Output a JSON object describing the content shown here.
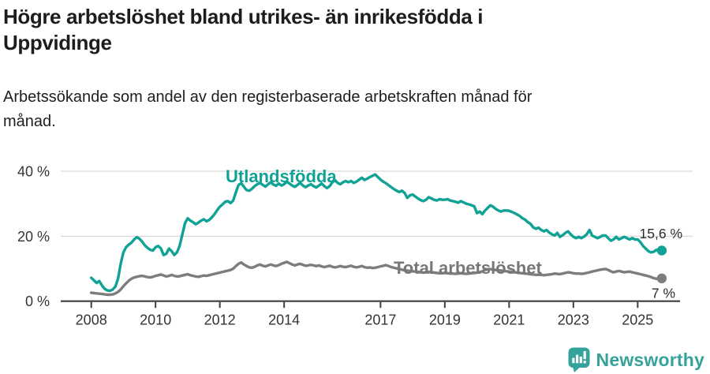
{
  "header": {
    "title_line1": "Högre arbetslöshet bland utrikes- än inrikesfödda i",
    "title_line2": "Uppvidinge",
    "subtitle_line1": "Arbetssökande som andel av den registerbaserade arbetskraften månad för",
    "subtitle_line2": "månad."
  },
  "chart_data": {
    "type": "line",
    "x_unit": "month",
    "x_start": "2008-01",
    "x_end": "2025-10",
    "x_tick_years": [
      2008,
      2010,
      2012,
      2014,
      2017,
      2019,
      2021,
      2023,
      2025
    ],
    "y_ticks": [
      {
        "value": 0,
        "label": "0 %"
      },
      {
        "value": 20,
        "label": "20 %"
      },
      {
        "value": 40,
        "label": "40 %"
      }
    ],
    "ylim": [
      0,
      43
    ],
    "grid": true,
    "series": [
      {
        "name": "Utlandsfödda",
        "color": "#0fa295",
        "end_label": "15,6 %",
        "end_value": 15.6,
        "values": [
          7.2,
          6.4,
          5.6,
          6.2,
          4.8,
          3.8,
          3.3,
          3.2,
          3.6,
          4.5,
          7.0,
          11.5,
          15.0,
          16.6,
          17.4,
          18.0,
          19.0,
          19.7,
          19.2,
          18.3,
          17.2,
          16.4,
          15.8,
          15.6,
          16.6,
          17.0,
          16.2,
          14.2,
          14.6,
          16.2,
          15.4,
          14.2,
          15.0,
          17.0,
          20.5,
          24.0,
          25.5,
          24.8,
          24.3,
          23.7,
          24.2,
          24.8,
          25.2,
          24.6,
          25.0,
          25.8,
          26.8,
          28.0,
          29.1,
          29.8,
          30.6,
          30.8,
          30.2,
          31.0,
          33.5,
          35.8,
          36.3,
          35.2,
          34.2,
          34.0,
          34.6,
          35.4,
          36.0,
          36.4,
          35.8,
          35.3,
          36.0,
          36.6,
          35.9,
          35.5,
          36.2,
          35.6,
          36.0,
          36.8,
          36.2,
          35.6,
          35.2,
          35.8,
          36.4,
          35.6,
          35.1,
          35.6,
          36.0,
          35.4,
          35.0,
          35.6,
          36.2,
          35.4,
          34.8,
          35.4,
          36.6,
          37.2,
          36.4,
          36.0,
          36.6,
          37.0,
          36.6,
          37.0,
          36.4,
          36.8,
          37.4,
          38.0,
          37.3,
          37.7,
          38.2,
          38.6,
          39.0,
          38.2,
          37.4,
          36.8,
          36.3,
          35.7,
          35.1,
          34.5,
          34.0,
          33.6,
          34.0,
          33.3,
          31.8,
          32.6,
          32.8,
          32.2,
          31.6,
          31.1,
          30.8,
          31.2,
          32.0,
          31.6,
          31.2,
          31.0,
          31.4,
          31.2,
          31.2,
          31.4,
          31.0,
          30.8,
          30.6,
          30.3,
          30.8,
          30.4,
          30.0,
          29.8,
          29.5,
          29.2,
          27.1,
          27.6,
          26.8,
          27.9,
          28.7,
          29.5,
          29.1,
          28.4,
          27.9,
          27.6,
          27.9,
          27.9,
          27.8,
          27.5,
          27.1,
          26.7,
          26.2,
          25.5,
          25.1,
          24.3,
          23.8,
          22.7,
          22.3,
          22.6,
          21.9,
          21.5,
          21.9,
          21.1,
          20.6,
          20.2,
          21.0,
          19.8,
          20.3,
          21.0,
          21.5,
          20.6,
          19.8,
          19.4,
          19.8,
          19.4,
          19.9,
          20.6,
          21.9,
          20.2,
          19.8,
          19.4,
          19.8,
          20.2,
          20.2,
          19.4,
          18.6,
          19.0,
          19.8,
          19.0,
          19.4,
          19.8,
          19.4,
          19.0,
          19.4,
          19.0,
          19.0,
          18.2,
          17.0,
          16.2,
          15.4,
          15.0,
          15.2,
          15.8,
          15.3,
          15.6
        ]
      },
      {
        "name": "Total arbetslöshet",
        "color": "#7d7d7d",
        "end_label": "7 %",
        "end_value": 7.0,
        "values": [
          2.6,
          2.5,
          2.4,
          2.3,
          2.2,
          2.1,
          2.0,
          2.0,
          2.1,
          2.4,
          2.9,
          3.6,
          4.6,
          5.5,
          6.3,
          6.9,
          7.3,
          7.5,
          7.7,
          7.8,
          7.6,
          7.4,
          7.3,
          7.5,
          7.8,
          8.0,
          8.2,
          7.9,
          7.6,
          7.8,
          8.1,
          7.8,
          7.6,
          7.7,
          7.9,
          8.1,
          8.3,
          8.0,
          7.8,
          7.6,
          7.5,
          7.7,
          7.9,
          7.8,
          8.0,
          8.2,
          8.4,
          8.6,
          8.8,
          9.0,
          9.2,
          9.4,
          9.6,
          10.0,
          10.8,
          11.5,
          11.9,
          11.3,
          10.8,
          10.4,
          10.3,
          10.6,
          11.0,
          11.3,
          10.9,
          10.7,
          11.0,
          11.3,
          11.0,
          10.8,
          11.1,
          11.5,
          11.8,
          12.1,
          11.7,
          11.3,
          11.0,
          11.3,
          11.5,
          11.2,
          10.9,
          11.0,
          11.2,
          11.0,
          10.8,
          11.0,
          10.7,
          10.5,
          10.7,
          10.9,
          10.6,
          10.4,
          10.6,
          10.8,
          10.6,
          10.5,
          10.7,
          10.9,
          10.6,
          10.4,
          10.6,
          10.8,
          10.5,
          10.3,
          10.4,
          10.2,
          10.3,
          10.5,
          10.7,
          10.9,
          11.1,
          10.8,
          10.5,
          10.3,
          10.1,
          9.9,
          9.7,
          9.5,
          9.4,
          9.3,
          9.2,
          9.1,
          9.0,
          8.9,
          8.8,
          8.9,
          9.0,
          8.9,
          8.8,
          8.7,
          8.6,
          8.6,
          8.7,
          8.6,
          8.5,
          8.5,
          8.4,
          8.5,
          8.6,
          8.5,
          8.4,
          8.5,
          8.6,
          8.7,
          8.8,
          8.9,
          9.2,
          9.6,
          9.8,
          9.9,
          9.7,
          9.6,
          9.5,
          9.4,
          9.3,
          9.2,
          9.1,
          9.0,
          8.9,
          8.8,
          8.7,
          8.6,
          8.5,
          8.4,
          8.3,
          8.2,
          8.1,
          8.1,
          8.1,
          8.0,
          8.1,
          8.2,
          8.3,
          8.5,
          8.4,
          8.3,
          8.5,
          8.7,
          8.9,
          8.8,
          8.6,
          8.5,
          8.5,
          8.4,
          8.5,
          8.7,
          8.9,
          9.1,
          9.3,
          9.5,
          9.7,
          9.8,
          9.9,
          9.6,
          9.2,
          8.9,
          9.1,
          9.3,
          9.1,
          8.9,
          9.0,
          9.1,
          8.9,
          8.7,
          8.5,
          8.3,
          8.1,
          7.9,
          7.7,
          7.4,
          7.1,
          6.9,
          7.0,
          7.0
        ]
      }
    ]
  },
  "footer": {
    "brand": "Newsworthy",
    "brand_color": "#36a39b"
  }
}
